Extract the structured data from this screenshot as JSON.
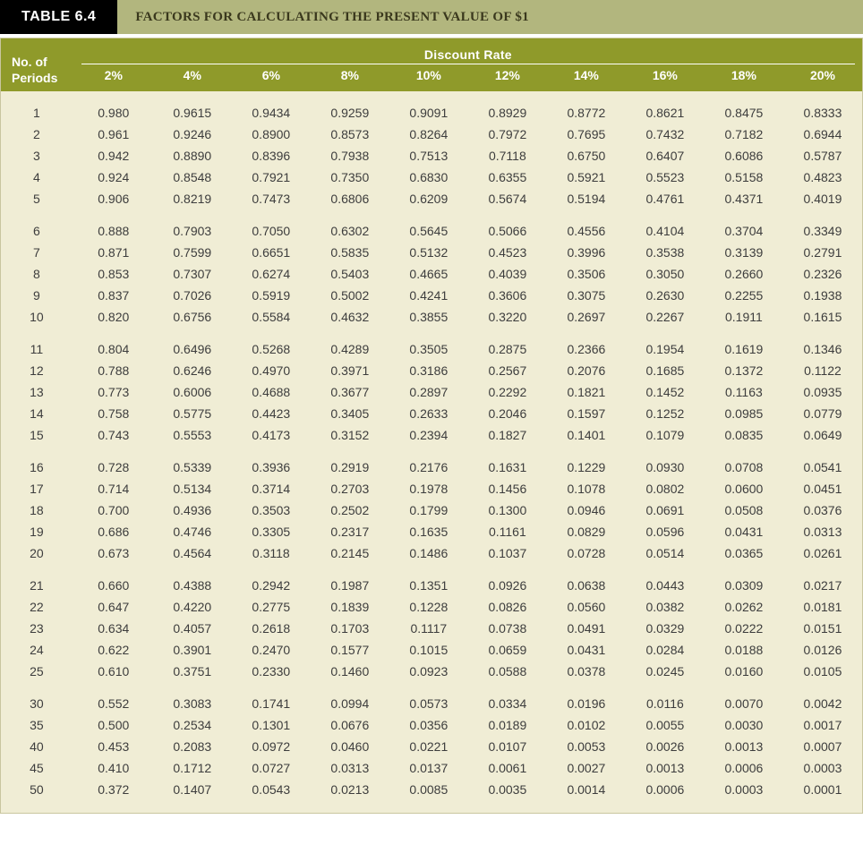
{
  "title": {
    "left": "TABLE 6.4",
    "right": "FACTORS FOR CALCULATING THE PRESENT VALUE OF $1"
  },
  "table": {
    "periods_header": "No. of\nPeriods",
    "spanner": "Discount Rate",
    "rate_headers": [
      "2%",
      "4%",
      "6%",
      "8%",
      "10%",
      "12%",
      "14%",
      "16%",
      "18%",
      "20%"
    ],
    "groups": [
      [
        {
          "p": "1",
          "v": [
            "0.980",
            "0.9615",
            "0.9434",
            "0.9259",
            "0.9091",
            "0.8929",
            "0.8772",
            "0.8621",
            "0.8475",
            "0.8333"
          ]
        },
        {
          "p": "2",
          "v": [
            "0.961",
            "0.9246",
            "0.8900",
            "0.8573",
            "0.8264",
            "0.7972",
            "0.7695",
            "0.7432",
            "0.7182",
            "0.6944"
          ]
        },
        {
          "p": "3",
          "v": [
            "0.942",
            "0.8890",
            "0.8396",
            "0.7938",
            "0.7513",
            "0.7118",
            "0.6750",
            "0.6407",
            "0.6086",
            "0.5787"
          ]
        },
        {
          "p": "4",
          "v": [
            "0.924",
            "0.8548",
            "0.7921",
            "0.7350",
            "0.6830",
            "0.6355",
            "0.5921",
            "0.5523",
            "0.5158",
            "0.4823"
          ]
        },
        {
          "p": "5",
          "v": [
            "0.906",
            "0.8219",
            "0.7473",
            "0.6806",
            "0.6209",
            "0.5674",
            "0.5194",
            "0.4761",
            "0.4371",
            "0.4019"
          ]
        }
      ],
      [
        {
          "p": "6",
          "v": [
            "0.888",
            "0.7903",
            "0.7050",
            "0.6302",
            "0.5645",
            "0.5066",
            "0.4556",
            "0.4104",
            "0.3704",
            "0.3349"
          ]
        },
        {
          "p": "7",
          "v": [
            "0.871",
            "0.7599",
            "0.6651",
            "0.5835",
            "0.5132",
            "0.4523",
            "0.3996",
            "0.3538",
            "0.3139",
            "0.2791"
          ]
        },
        {
          "p": "8",
          "v": [
            "0.853",
            "0.7307",
            "0.6274",
            "0.5403",
            "0.4665",
            "0.4039",
            "0.3506",
            "0.3050",
            "0.2660",
            "0.2326"
          ]
        },
        {
          "p": "9",
          "v": [
            "0.837",
            "0.7026",
            "0.5919",
            "0.5002",
            "0.4241",
            "0.3606",
            "0.3075",
            "0.2630",
            "0.2255",
            "0.1938"
          ]
        },
        {
          "p": "10",
          "v": [
            "0.820",
            "0.6756",
            "0.5584",
            "0.4632",
            "0.3855",
            "0.3220",
            "0.2697",
            "0.2267",
            "0.1911",
            "0.1615"
          ]
        }
      ],
      [
        {
          "p": "11",
          "v": [
            "0.804",
            "0.6496",
            "0.5268",
            "0.4289",
            "0.3505",
            "0.2875",
            "0.2366",
            "0.1954",
            "0.1619",
            "0.1346"
          ]
        },
        {
          "p": "12",
          "v": [
            "0.788",
            "0.6246",
            "0.4970",
            "0.3971",
            "0.3186",
            "0.2567",
            "0.2076",
            "0.1685",
            "0.1372",
            "0.1122"
          ]
        },
        {
          "p": "13",
          "v": [
            "0.773",
            "0.6006",
            "0.4688",
            "0.3677",
            "0.2897",
            "0.2292",
            "0.1821",
            "0.1452",
            "0.1163",
            "0.0935"
          ]
        },
        {
          "p": "14",
          "v": [
            "0.758",
            "0.5775",
            "0.4423",
            "0.3405",
            "0.2633",
            "0.2046",
            "0.1597",
            "0.1252",
            "0.0985",
            "0.0779"
          ]
        },
        {
          "p": "15",
          "v": [
            "0.743",
            "0.5553",
            "0.4173",
            "0.3152",
            "0.2394",
            "0.1827",
            "0.1401",
            "0.1079",
            "0.0835",
            "0.0649"
          ]
        }
      ],
      [
        {
          "p": "16",
          "v": [
            "0.728",
            "0.5339",
            "0.3936",
            "0.2919",
            "0.2176",
            "0.1631",
            "0.1229",
            "0.0930",
            "0.0708",
            "0.0541"
          ]
        },
        {
          "p": "17",
          "v": [
            "0.714",
            "0.5134",
            "0.3714",
            "0.2703",
            "0.1978",
            "0.1456",
            "0.1078",
            "0.0802",
            "0.0600",
            "0.0451"
          ]
        },
        {
          "p": "18",
          "v": [
            "0.700",
            "0.4936",
            "0.3503",
            "0.2502",
            "0.1799",
            "0.1300",
            "0.0946",
            "0.0691",
            "0.0508",
            "0.0376"
          ]
        },
        {
          "p": "19",
          "v": [
            "0.686",
            "0.4746",
            "0.3305",
            "0.2317",
            "0.1635",
            "0.1161",
            "0.0829",
            "0.0596",
            "0.0431",
            "0.0313"
          ]
        },
        {
          "p": "20",
          "v": [
            "0.673",
            "0.4564",
            "0.3118",
            "0.2145",
            "0.1486",
            "0.1037",
            "0.0728",
            "0.0514",
            "0.0365",
            "0.0261"
          ]
        }
      ],
      [
        {
          "p": "21",
          "v": [
            "0.660",
            "0.4388",
            "0.2942",
            "0.1987",
            "0.1351",
            "0.0926",
            "0.0638",
            "0.0443",
            "0.0309",
            "0.0217"
          ]
        },
        {
          "p": "22",
          "v": [
            "0.647",
            "0.4220",
            "0.2775",
            "0.1839",
            "0.1228",
            "0.0826",
            "0.0560",
            "0.0382",
            "0.0262",
            "0.0181"
          ]
        },
        {
          "p": "23",
          "v": [
            "0.634",
            "0.4057",
            "0.2618",
            "0.1703",
            "0.1117",
            "0.0738",
            "0.0491",
            "0.0329",
            "0.0222",
            "0.0151"
          ]
        },
        {
          "p": "24",
          "v": [
            "0.622",
            "0.3901",
            "0.2470",
            "0.1577",
            "0.1015",
            "0.0659",
            "0.0431",
            "0.0284",
            "0.0188",
            "0.0126"
          ]
        },
        {
          "p": "25",
          "v": [
            "0.610",
            "0.3751",
            "0.2330",
            "0.1460",
            "0.0923",
            "0.0588",
            "0.0378",
            "0.0245",
            "0.0160",
            "0.0105"
          ]
        }
      ],
      [
        {
          "p": "30",
          "v": [
            "0.552",
            "0.3083",
            "0.1741",
            "0.0994",
            "0.0573",
            "0.0334",
            "0.0196",
            "0.0116",
            "0.0070",
            "0.0042"
          ]
        },
        {
          "p": "35",
          "v": [
            "0.500",
            "0.2534",
            "0.1301",
            "0.0676",
            "0.0356",
            "0.0189",
            "0.0102",
            "0.0055",
            "0.0030",
            "0.0017"
          ]
        },
        {
          "p": "40",
          "v": [
            "0.453",
            "0.2083",
            "0.0972",
            "0.0460",
            "0.0221",
            "0.0107",
            "0.0053",
            "0.0026",
            "0.0013",
            "0.0007"
          ]
        },
        {
          "p": "45",
          "v": [
            "0.410",
            "0.1712",
            "0.0727",
            "0.0313",
            "0.0137",
            "0.0061",
            "0.0027",
            "0.0013",
            "0.0006",
            "0.0003"
          ]
        },
        {
          "p": "50",
          "v": [
            "0.372",
            "0.1407",
            "0.0543",
            "0.0213",
            "0.0085",
            "0.0035",
            "0.0014",
            "0.0006",
            "0.0003",
            "0.0001"
          ]
        }
      ]
    ]
  },
  "style": {
    "header_bg": "#8f9a2a",
    "header_fg": "#ffffff",
    "body_bg": "#f0edd5",
    "title_left_bg": "#000000",
    "title_left_fg": "#ffffff",
    "title_right_bg": "#b2b67e",
    "title_right_fg": "#3a381d",
    "body_font_size_pt": 10.5,
    "header_font_size_pt": 10.5,
    "title_font_family": "Georgia, 'Times New Roman', serif"
  }
}
